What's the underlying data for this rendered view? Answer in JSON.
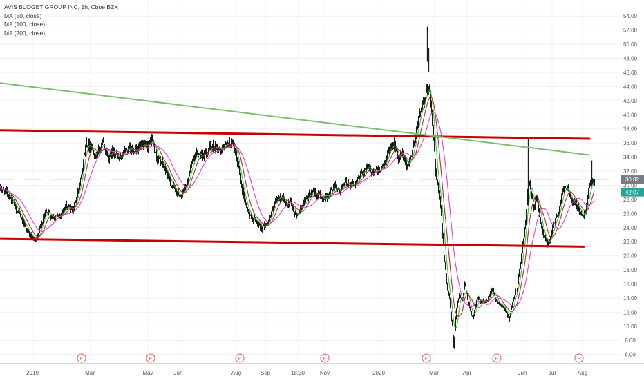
{
  "chart_data": {
    "type": "line",
    "chart_style": "candlestick",
    "title": "AVIS BUDGET GROUP INC, 1h, Cboe BZX",
    "indicators": [
      {
        "name": "MA (50, close)",
        "color": "#2ecc40"
      },
      {
        "name": "MA (100, close)",
        "color": "#c0282d"
      },
      {
        "name": "MA (200, close)",
        "color": "#e040d0"
      }
    ],
    "y_axis": {
      "ticks": [
        "6.00",
        "8.00",
        "10.00",
        "12.00",
        "14.00",
        "16.00",
        "18.00",
        "20.00",
        "22.00",
        "24.00",
        "26.00",
        "28.00",
        "30.00",
        "32.00",
        "34.00",
        "36.00",
        "38.00",
        "40.00",
        "42.00",
        "44.00",
        "46.00",
        "48.00",
        "50.00",
        "52.00",
        "54.00"
      ],
      "ylim": [
        4.5,
        55
      ]
    },
    "x_axis": {
      "labels": [
        "2019",
        "Mar",
        "May",
        "Jun",
        "Aug",
        "Sep",
        "18:30",
        "Nov",
        "2020",
        "Mar",
        "Apr",
        "Jun",
        "Jul",
        "Aug"
      ],
      "xlim": [
        0,
        900
      ]
    },
    "price_labels": [
      {
        "text": "30.82",
        "value": 30.82,
        "color": "#787b86"
      },
      {
        "text": "42:07",
        "value": 29.0,
        "color": "#26a69a"
      }
    ],
    "earnings_marker": "E",
    "earnings_x": [
      118,
      218,
      347,
      470,
      617,
      719,
      838
    ],
    "trendlines": [
      {
        "name": "upper channel",
        "color": "#c80000",
        "x1": 0,
        "y1": 37.8,
        "x2": 853,
        "y2": 36.6
      },
      {
        "name": "lower channel",
        "color": "#c80000",
        "x1": 0,
        "y1": 22.4,
        "x2": 845,
        "y2": 21.3
      },
      {
        "name": "descending resistance",
        "color": "#7bbf6a",
        "x1": 0,
        "y1": 44.5,
        "x2": 853,
        "y2": 34.3
      }
    ],
    "price_anchors": [
      [
        0,
        29.5
      ],
      [
        10,
        29.0
      ],
      [
        18,
        27.5
      ],
      [
        30,
        25.5
      ],
      [
        42,
        23.0
      ],
      [
        52,
        22.0
      ],
      [
        58,
        24.0
      ],
      [
        66,
        26.5
      ],
      [
        75,
        25.5
      ],
      [
        85,
        25.5
      ],
      [
        95,
        27.0
      ],
      [
        105,
        26.5
      ],
      [
        112,
        29.0
      ],
      [
        118,
        32.0
      ],
      [
        124,
        36.0
      ],
      [
        132,
        35.5
      ],
      [
        138,
        34.0
      ],
      [
        148,
        36.0
      ],
      [
        156,
        34.0
      ],
      [
        164,
        35.0
      ],
      [
        172,
        33.5
      ],
      [
        180,
        35.0
      ],
      [
        192,
        35.0
      ],
      [
        205,
        35.5
      ],
      [
        212,
        35.5
      ],
      [
        220,
        36.5
      ],
      [
        226,
        34.0
      ],
      [
        232,
        33.5
      ],
      [
        240,
        32.0
      ],
      [
        248,
        30.0
      ],
      [
        256,
        29.0
      ],
      [
        262,
        28.5
      ],
      [
        270,
        30.0
      ],
      [
        276,
        33.0
      ],
      [
        284,
        34.5
      ],
      [
        292,
        34.0
      ],
      [
        300,
        35.0
      ],
      [
        310,
        35.5
      ],
      [
        318,
        35.0
      ],
      [
        330,
        36.0
      ],
      [
        338,
        35.5
      ],
      [
        344,
        33.0
      ],
      [
        350,
        29.5
      ],
      [
        356,
        27.0
      ],
      [
        362,
        25.5
      ],
      [
        370,
        25.0
      ],
      [
        378,
        24.0
      ],
      [
        386,
        24.5
      ],
      [
        394,
        26.5
      ],
      [
        400,
        28.0
      ],
      [
        408,
        28.5
      ],
      [
        414,
        27.0
      ],
      [
        420,
        27.5
      ],
      [
        428,
        25.5
      ],
      [
        436,
        27.0
      ],
      [
        446,
        28.5
      ],
      [
        456,
        29.0
      ],
      [
        466,
        28.0
      ],
      [
        474,
        28.5
      ],
      [
        484,
        30.0
      ],
      [
        492,
        29.0
      ],
      [
        500,
        30.5
      ],
      [
        508,
        30.0
      ],
      [
        516,
        30.5
      ],
      [
        524,
        32.0
      ],
      [
        532,
        32.5
      ],
      [
        540,
        32.0
      ],
      [
        548,
        32.0
      ],
      [
        556,
        33.0
      ],
      [
        564,
        35.5
      ],
      [
        570,
        36.0
      ],
      [
        576,
        33.5
      ],
      [
        582,
        34.5
      ],
      [
        588,
        32.5
      ],
      [
        594,
        34.0
      ],
      [
        600,
        36.5
      ],
      [
        606,
        40.0
      ],
      [
        612,
        41.5
      ],
      [
        618,
        44.0
      ],
      [
        622,
        43.0
      ],
      [
        626,
        38.0
      ],
      [
        630,
        32.0
      ],
      [
        634,
        29.5
      ],
      [
        638,
        26.0
      ],
      [
        642,
        20.0
      ],
      [
        646,
        16.0
      ],
      [
        650,
        14.0
      ],
      [
        654,
        10.0
      ],
      [
        656,
        7.0
      ],
      [
        660,
        12.5
      ],
      [
        664,
        14.5
      ],
      [
        668,
        13.5
      ],
      [
        672,
        16.0
      ],
      [
        678,
        13.0
      ],
      [
        684,
        11.0
      ],
      [
        690,
        14.0
      ],
      [
        696,
        13.5
      ],
      [
        704,
        13.5
      ],
      [
        712,
        15.5
      ],
      [
        718,
        13.5
      ],
      [
        726,
        13.0
      ],
      [
        732,
        12.0
      ],
      [
        736,
        11.0
      ],
      [
        742,
        13.5
      ],
      [
        748,
        15.5
      ],
      [
        754,
        20.0
      ],
      [
        760,
        24.5
      ],
      [
        764,
        31.0
      ],
      [
        768,
        29.0
      ],
      [
        772,
        26.5
      ],
      [
        776,
        28.5
      ],
      [
        782,
        24.5
      ],
      [
        788,
        22.5
      ],
      [
        794,
        21.5
      ],
      [
        800,
        24.5
      ],
      [
        808,
        26.0
      ],
      [
        814,
        29.5
      ],
      [
        820,
        29.5
      ],
      [
        826,
        28.0
      ],
      [
        832,
        27.5
      ],
      [
        838,
        26.5
      ],
      [
        844,
        25.5
      ],
      [
        848,
        27.0
      ],
      [
        852,
        30.0
      ],
      [
        856,
        30.5
      ],
      [
        860,
        30.82
      ]
    ],
    "price_spikes": [
      {
        "x": 618,
        "high": 52.5,
        "low": 47.5
      },
      {
        "x": 620,
        "high": 49.5,
        "low": 46.0
      },
      {
        "x": 764,
        "high": 36.5,
        "low": 27.0
      },
      {
        "x": 856,
        "high": 33.5,
        "low": 29.5
      }
    ]
  }
}
